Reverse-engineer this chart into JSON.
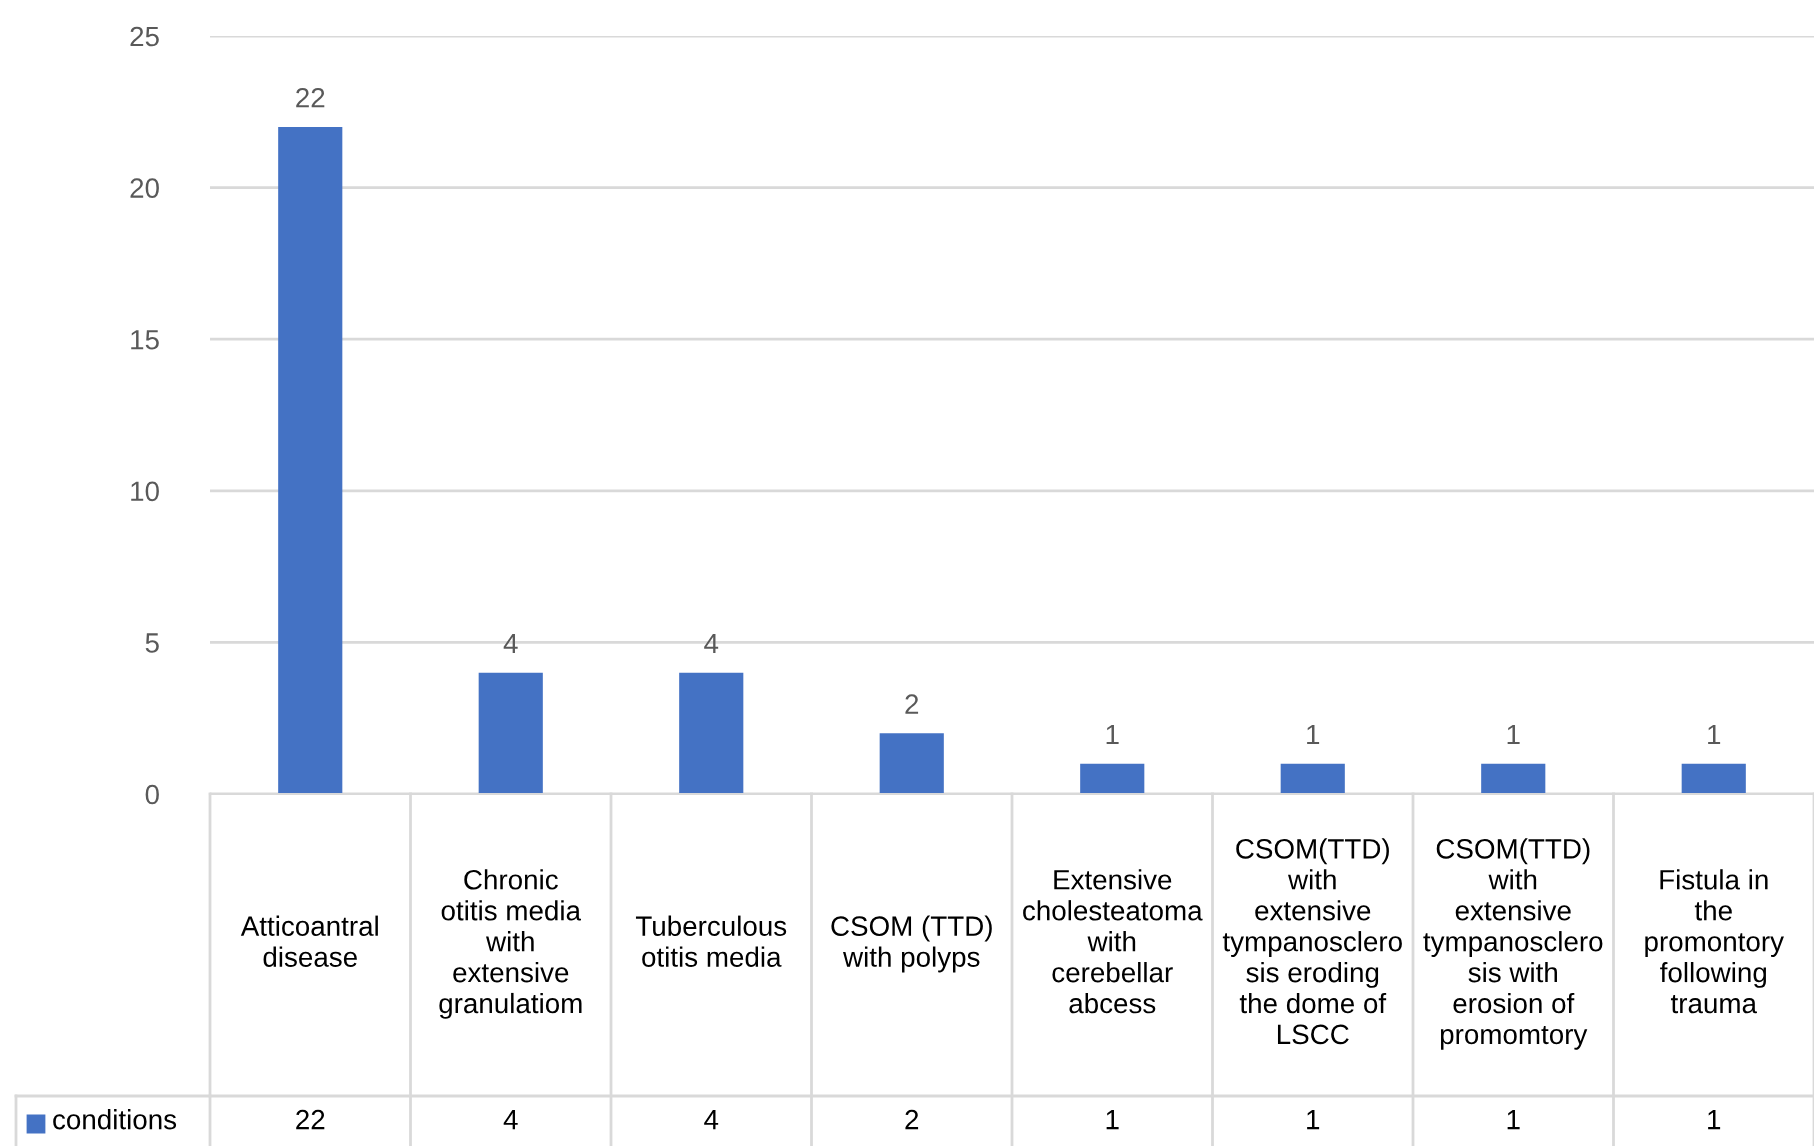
{
  "chart_data": {
    "type": "bar",
    "categories": [
      "Atticoantral disease",
      "Chronic otitis media with extensive granulatiom",
      "Tuberculous otitis media",
      "CSOM (TTD) with polyps",
      "Extensive cholesteatoma with cerebellar abcess",
      "CSOM(TTD) with extensive tympanosclerosis eroding the dome of LSCC",
      "CSOM(TTD) with extensive tympanosclerosis with erosion of promomtory",
      "Fistula in the promontory following trauma"
    ],
    "series": [
      {
        "name": "conditions",
        "color": "#4472c4",
        "values": [
          22,
          4,
          4,
          2,
          1,
          1,
          1,
          1
        ],
        "value_labels": [
          "22",
          "4",
          "4",
          "2",
          "1",
          "1",
          "1",
          "1"
        ]
      }
    ],
    "ylim": [
      0,
      25
    ],
    "yticks": [
      0,
      5,
      10,
      15,
      20,
      25
    ],
    "annotations": [
      "22",
      "4",
      "4",
      "2",
      "1",
      "1",
      "1",
      "1"
    ],
    "grid": "y",
    "data_labels": true,
    "legend": "bottom"
  }
}
